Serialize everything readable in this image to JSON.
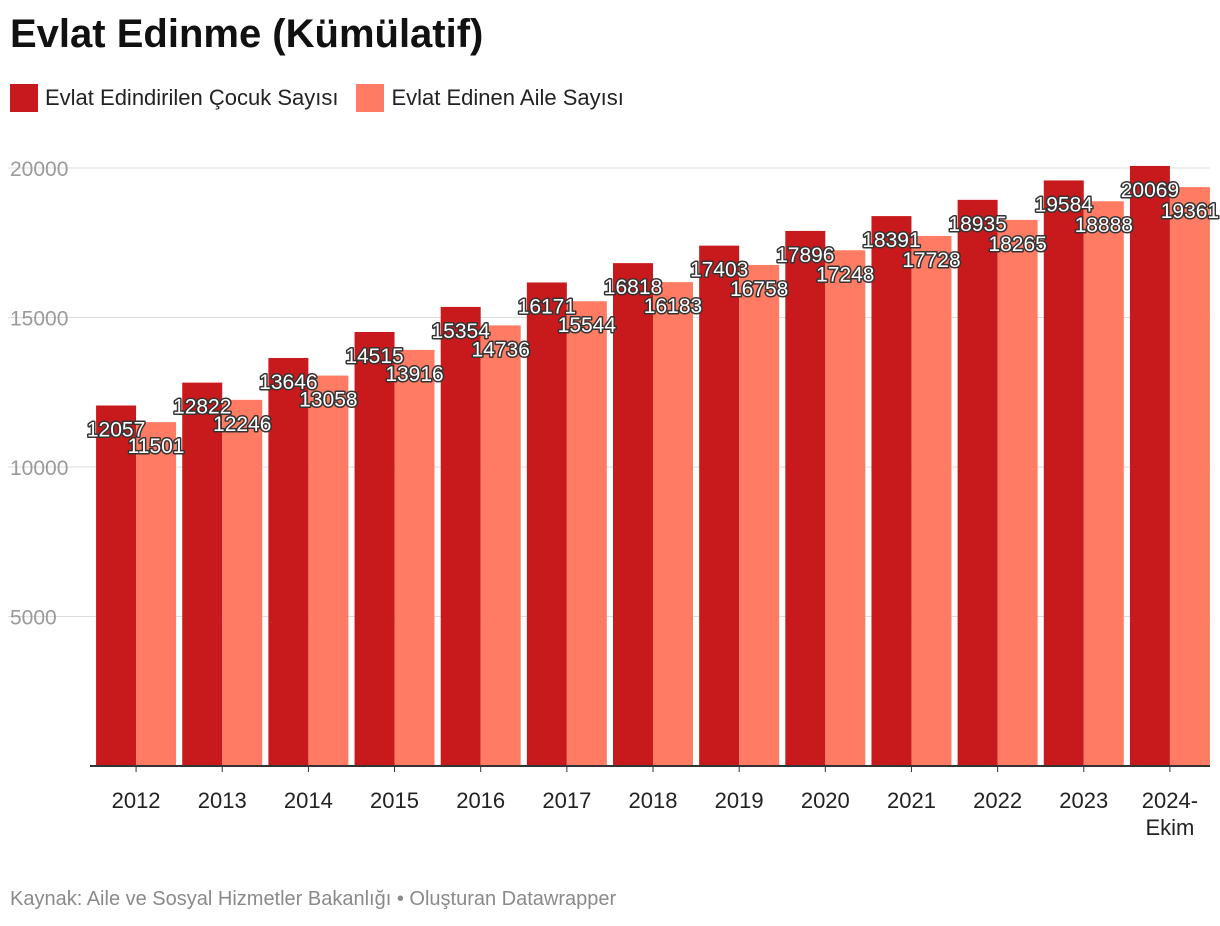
{
  "title": "Evlat Edinme (Kümülatif)",
  "legend": [
    {
      "label": "Evlat Edindirilen Çocuk Sayısı",
      "color": "#c8191d"
    },
    {
      "label": "Evlat Edinen Aile Sayısı",
      "color": "#ff7b63"
    }
  ],
  "footer": "Kaynak: Aile ve Sosyal Hizmetler Bakanlığı • Oluşturan Datawrapper",
  "chart_data": {
    "type": "bar",
    "title": "Evlat Edinme (Kümülatif)",
    "categories": [
      "2012",
      "2013",
      "2014",
      "2015",
      "2016",
      "2017",
      "2018",
      "2019",
      "2020",
      "2021",
      "2022",
      "2023",
      "2024-Ekim"
    ],
    "category_lines": [
      [
        "2012"
      ],
      [
        "2013"
      ],
      [
        "2014"
      ],
      [
        "2015"
      ],
      [
        "2016"
      ],
      [
        "2017"
      ],
      [
        "2018"
      ],
      [
        "2019"
      ],
      [
        "2020"
      ],
      [
        "2021"
      ],
      [
        "2022"
      ],
      [
        "2023"
      ],
      [
        "2024-",
        "Ekim"
      ]
    ],
    "series": [
      {
        "name": "Evlat Edindirilen Çocuk Sayısı",
        "color": "#c8191d",
        "values": [
          12057,
          12822,
          13646,
          14515,
          15354,
          16171,
          16818,
          17403,
          17896,
          18391,
          18935,
          19584,
          20069
        ]
      },
      {
        "name": "Evlat Edinen Aile Sayısı",
        "color": "#ff7b63",
        "values": [
          11501,
          12246,
          13058,
          13916,
          14736,
          15544,
          16183,
          16758,
          17248,
          17728,
          18265,
          18888,
          19361
        ]
      }
    ],
    "y_ticks": [
      5000,
      10000,
      15000,
      20000
    ],
    "ylim": [
      0,
      20000
    ],
    "xlabel": "",
    "ylabel": "",
    "grid": true,
    "legend_position": "top-left"
  }
}
